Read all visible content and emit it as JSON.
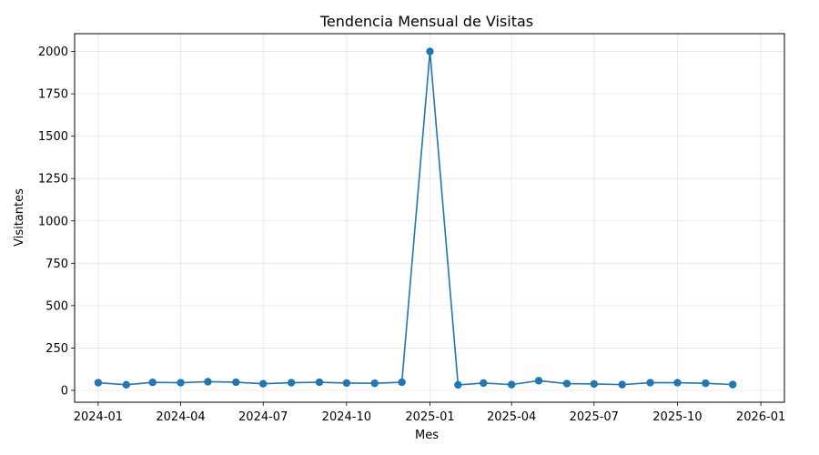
{
  "chart_data": {
    "type": "line",
    "title": "Tendencia Mensual de Visitas",
    "xlabel": "Mes",
    "ylabel": "Visitantes",
    "grid": true,
    "line_color": "#1f77b4",
    "x_range": [
      "2023-12-06",
      "2026-01-27"
    ],
    "ylim": [
      -70,
      2105
    ],
    "x_ticks": [
      "2024-01",
      "2024-04",
      "2024-07",
      "2024-10",
      "2025-01",
      "2025-04",
      "2025-07",
      "2025-10",
      "2026-01"
    ],
    "y_ticks": [
      "0",
      "250",
      "500",
      "750",
      "1000",
      "1250",
      "1500",
      "1750",
      "2000"
    ],
    "series": [
      {
        "x": [
          "2024-01-01",
          "2024-02-01",
          "2024-03-01",
          "2024-04-01",
          "2024-05-01",
          "2024-06-01",
          "2024-07-01",
          "2024-08-01",
          "2024-09-01",
          "2024-10-01",
          "2024-11-01",
          "2024-12-01",
          "2025-01-01",
          "2025-02-01",
          "2025-03-01",
          "2025-04-01",
          "2025-05-01",
          "2025-06-01",
          "2025-07-01",
          "2025-08-01",
          "2025-09-01",
          "2025-10-01",
          "2025-11-01",
          "2025-12-01"
        ],
        "values": [
          45,
          33,
          47,
          45,
          51,
          48,
          39,
          45,
          48,
          43,
          42,
          48,
          2000,
          32,
          43,
          34,
          57,
          40,
          38,
          34,
          45,
          45,
          42,
          34
        ]
      }
    ]
  }
}
